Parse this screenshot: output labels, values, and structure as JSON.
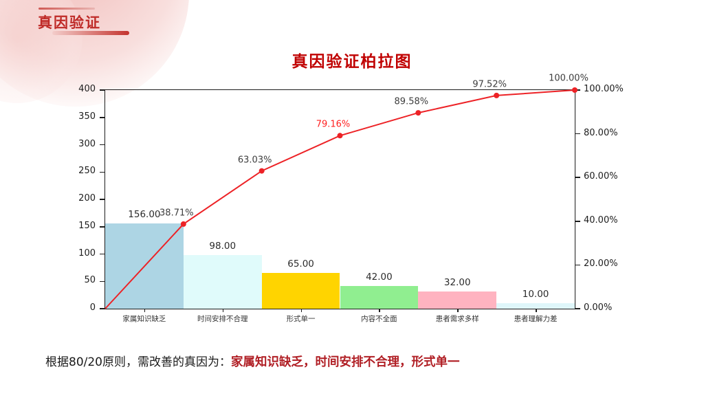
{
  "header": {
    "title": "真因验证"
  },
  "footer": {
    "prefix": "根据80/20原则，需改善的真因为：",
    "highlight": "家属知识缺乏，时间安排不合理，形式单一"
  },
  "colors": {
    "title_red": "#c00000",
    "header_red": "#bf2b28",
    "footer_red": "#b01e24",
    "axis_black": "#1b1b1b",
    "pct_label_gray": "#3d3d3d",
    "pct_label_highlight": "#ff2020"
  },
  "chart_data": {
    "type": "bar",
    "subtype": "pareto",
    "title": "真因验证柏拉图",
    "categories": [
      "家属知识缺乏",
      "时间安排不合理",
      "形式单一",
      "内容不全面",
      "患者需求多样",
      "患者理解力差"
    ],
    "bar_values": [
      156,
      98,
      65,
      42,
      32,
      10
    ],
    "bar_value_labels": [
      "156.00",
      "98.00",
      "65.00",
      "42.00",
      "32.00",
      "10.00"
    ],
    "bar_colors": [
      "#add5e4",
      "#e0fbfb",
      "#ffd400",
      "#90ee90",
      "#ffb3c0",
      "#dff6fa"
    ],
    "series": [
      {
        "name": "frequency",
        "type": "bar",
        "values": [
          156,
          98,
          65,
          42,
          32,
          10
        ]
      },
      {
        "name": "cumulative-percent",
        "type": "line",
        "values": [
          38.71,
          63.03,
          79.16,
          89.58,
          97.52,
          100.0
        ]
      }
    ],
    "cumulative_pct": [
      38.71,
      63.03,
      79.16,
      89.58,
      97.52,
      100.0
    ],
    "cumulative_labels": [
      "38.71%",
      "63.03%",
      "79.16%",
      "89.58%",
      "97.52%",
      "100.00%"
    ],
    "extra_corner_label": "100.00%",
    "highlight_index": 2,
    "line_color": "#ed2226",
    "line_starts_at_origin": true,
    "grid": false,
    "legend": "none",
    "left_axis": {
      "min": 0,
      "max": 400,
      "tick_step": 50,
      "ticks": [
        "0",
        "50",
        "100",
        "150",
        "200",
        "250",
        "300",
        "350",
        "400"
      ]
    },
    "right_axis": {
      "min": 0,
      "max": 100,
      "tick_step": 20,
      "ticks": [
        "0.00%",
        "20.00%",
        "40.00%",
        "60.00%",
        "80.00%",
        "100.00%"
      ]
    }
  }
}
